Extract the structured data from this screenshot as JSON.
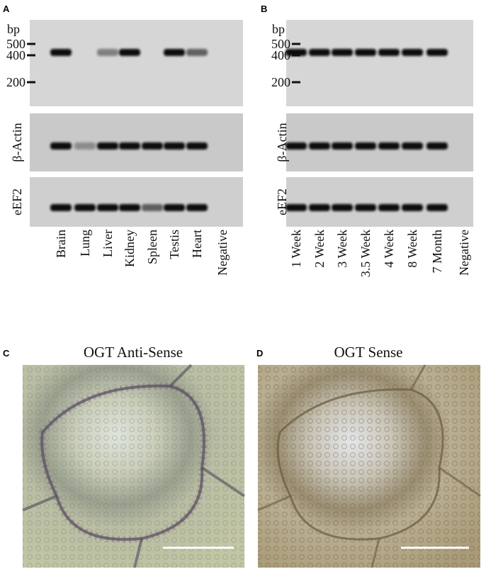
{
  "panels": [
    {
      "letter": "A",
      "bp_label": "bp",
      "markers": [
        "500",
        "400",
        "200"
      ],
      "gel_labels": [
        "β-Actin",
        "eEF2"
      ],
      "lanes": [
        "Brain",
        "Lung",
        "Liver",
        "Kidney",
        "Spleen",
        "Testis",
        "Heart",
        "Negative"
      ]
    },
    {
      "letter": "B",
      "bp_label": "bp",
      "markers": [
        "500",
        "400",
        "200"
      ],
      "gel_labels": [
        "β-Actin",
        "eEF2"
      ],
      "lanes": [
        "1 Week",
        "2 Week",
        "3 Week",
        "3.5 Week",
        "4 Week",
        "8 Week",
        "7 Month",
        "Negative"
      ]
    },
    {
      "letter": "C",
      "title": "OGT Anti-Sense"
    },
    {
      "letter": "D",
      "title": "OGT Sense"
    }
  ]
}
